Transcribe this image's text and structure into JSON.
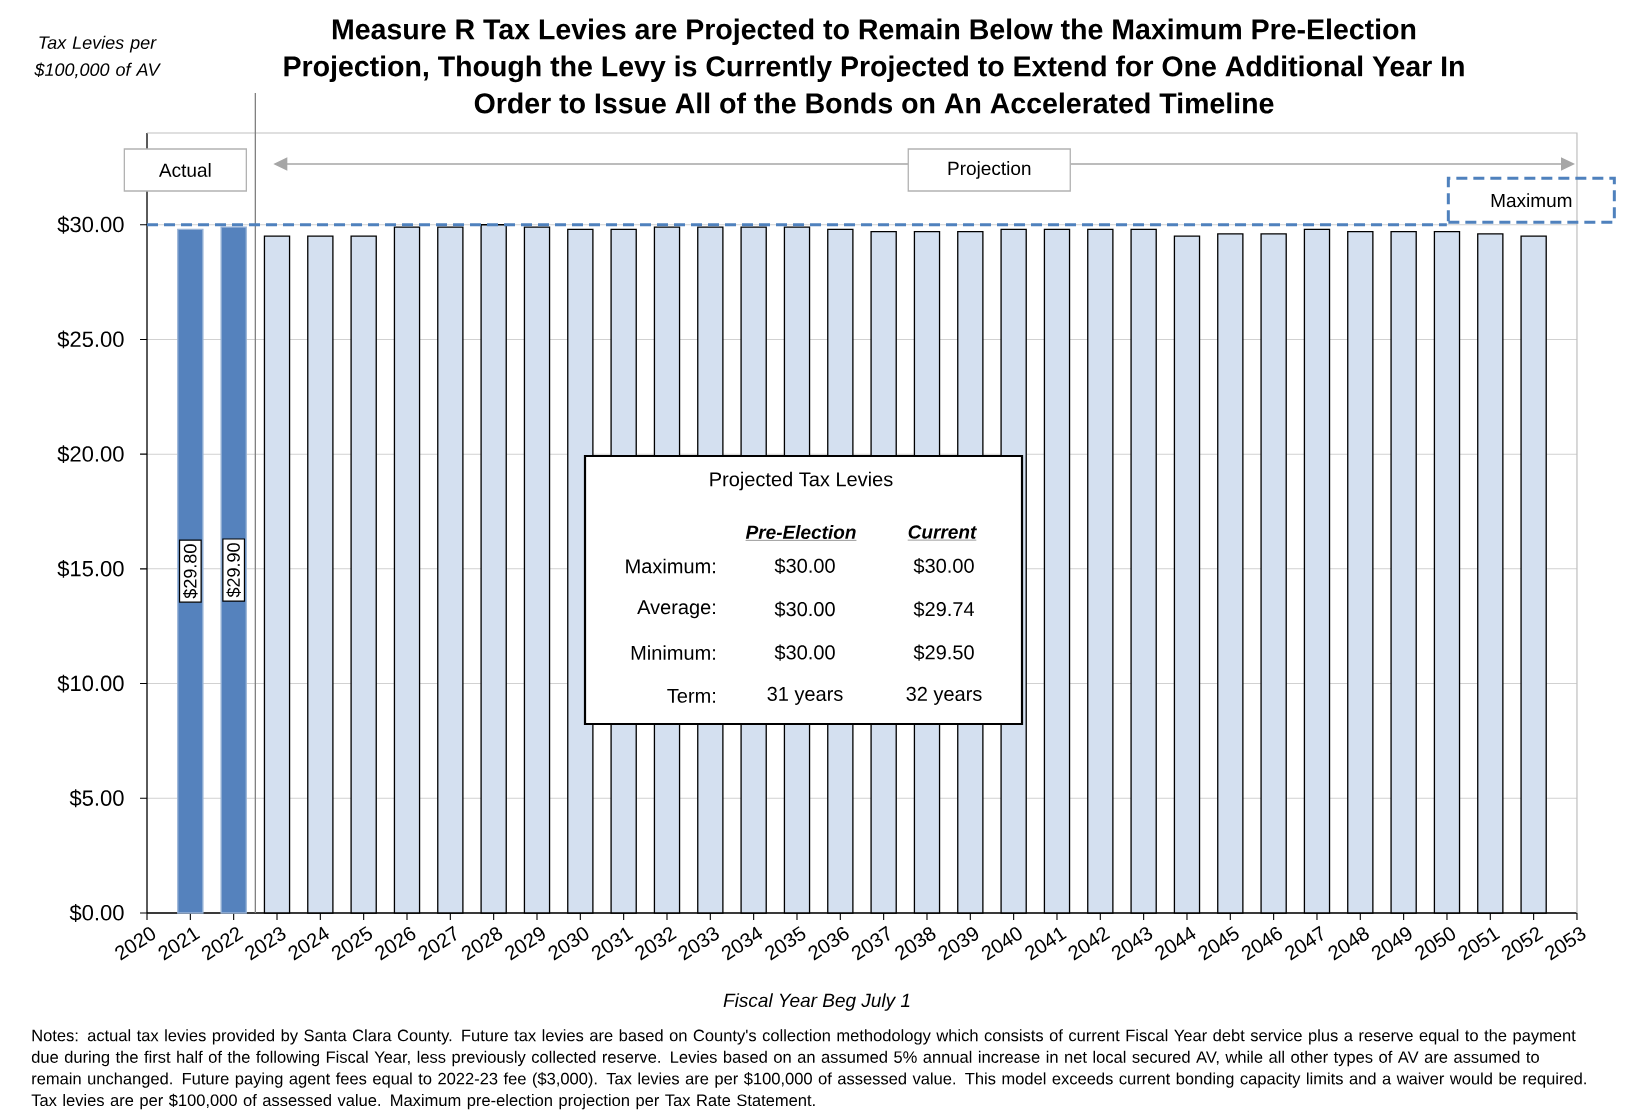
{
  "chart_data": {
    "type": "bar",
    "title": "Measure R Tax Levies are Projected to Remain Below the Maximum Pre-Election Projection, Though the Levy is Currently Projected to Extend for One Additional Year In Order to Issue All of the Bonds on An Accelerated Timeline",
    "ylabel": "Tax Levies per $100,000 of AV",
    "xlabel": "Fiscal Year Beg July 1",
    "x": [
      2021,
      2022,
      2023,
      2024,
      2025,
      2026,
      2027,
      2028,
      2029,
      2030,
      2031,
      2032,
      2033,
      2034,
      2035,
      2036,
      2037,
      2038,
      2039,
      2040,
      2041,
      2042,
      2043,
      2044,
      2045,
      2046,
      2047,
      2048,
      2049,
      2050,
      2051,
      2052
    ],
    "values": [
      29.8,
      29.9,
      29.5,
      29.5,
      29.5,
      29.9,
      29.9,
      30.0,
      29.9,
      29.8,
      29.8,
      29.9,
      29.9,
      29.9,
      29.9,
      29.8,
      29.7,
      29.7,
      29.7,
      29.8,
      29.8,
      29.8,
      29.8,
      29.5,
      29.6,
      29.6,
      29.8,
      29.7,
      29.7,
      29.7,
      29.6,
      29.5
    ],
    "colors": [
      "#5582bd",
      "#5582bd",
      "#d4e0f0",
      "#d4e0f0",
      "#d4e0f0",
      "#d4e0f0",
      "#d4e0f0",
      "#d4e0f0",
      "#d4e0f0",
      "#d4e0f0",
      "#d4e0f0",
      "#d4e0f0",
      "#d4e0f0",
      "#d4e0f0",
      "#d4e0f0",
      "#d4e0f0",
      "#d4e0f0",
      "#d4e0f0",
      "#d4e0f0",
      "#d4e0f0",
      "#d4e0f0",
      "#d4e0f0",
      "#d4e0f0",
      "#d4e0f0",
      "#d4e0f0",
      "#d4e0f0",
      "#d4e0f0",
      "#d4e0f0",
      "#d4e0f0",
      "#d4e0f0",
      "#d4e0f0",
      "#d4e0f0"
    ],
    "value_labels": [
      "$29.80",
      "$29.90",
      null,
      null,
      null,
      null,
      null,
      null,
      null,
      null,
      null,
      null,
      null,
      null,
      null,
      null,
      null,
      null,
      null,
      null,
      null,
      null,
      null,
      null,
      null,
      null,
      null,
      null,
      null,
      null,
      null,
      null
    ],
    "xlim": [
      2020,
      2053
    ],
    "xticks": [
      2020,
      2021,
      2022,
      2023,
      2024,
      2025,
      2026,
      2027,
      2028,
      2029,
      2030,
      2031,
      2032,
      2033,
      2034,
      2035,
      2036,
      2037,
      2038,
      2039,
      2040,
      2041,
      2042,
      2043,
      2044,
      2045,
      2046,
      2047,
      2048,
      2049,
      2050,
      2051,
      2052,
      2053
    ],
    "ylim": [
      0,
      34
    ],
    "yticks": [
      {
        "value": 0,
        "label": "$0.00"
      },
      {
        "value": 5,
        "label": "$5.00"
      },
      {
        "value": 10,
        "label": "$10.00"
      },
      {
        "value": 15,
        "label": "$15.00"
      },
      {
        "value": 20,
        "label": "$20.00"
      },
      {
        "value": 25,
        "label": "$25.00"
      },
      {
        "value": 30,
        "label": "$30.00"
      }
    ],
    "grid": "y",
    "ref_lines": [
      {
        "axis": "x",
        "value": 2022.5,
        "color": "#808080"
      },
      {
        "axis": "y",
        "value": 30,
        "label": "Maximum",
        "color": "#4f81bd",
        "line_style": "dashed"
      }
    ],
    "annotations": [
      "Actual",
      "Projection",
      "Projected Tax Levies",
      "Pre-Election",
      "Current",
      "Maximum:",
      "$30.00",
      "$30.00",
      "Average:",
      "$30.00",
      "$29.74",
      "Minimum:",
      "$30.00",
      "$29.50",
      "Term:",
      "31 years",
      "32 years",
      "Notes: actual tax levies provided by Santa Clara County. Future tax levies are based on County's collection methodology which consists of current Fiscal Year debt service plus a reserve equal to the payment due during the first half of the following Fiscal Year, less previously collected reserve. Levies based on an assumed 5% annual increase in net local secured AV, while all other types of AV are assumed to remain unchanged. Future paying agent fees equal to 2022-23 fee ($3,000). Tax levies are per $100,000 of assessed value. This model exceeds current bonding capacity limits and a waiver would be required. Tax levies are per $100,000 of assessed value. Maximum pre-election projection per Tax Rate Statement."
    ]
  }
}
